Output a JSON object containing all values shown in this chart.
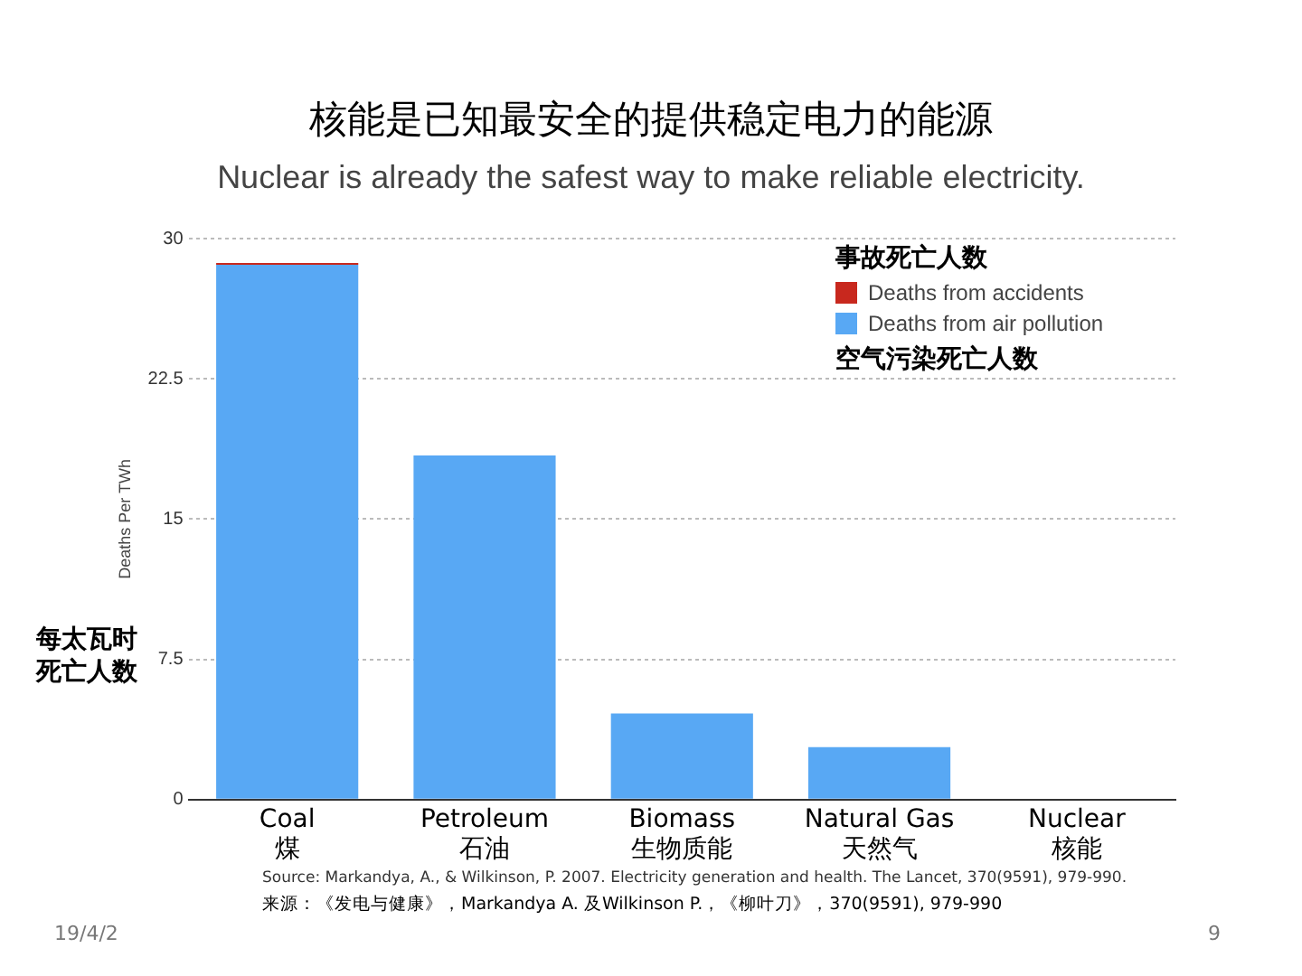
{
  "chart_data": {
    "type": "bar",
    "title": "核能是已知最安全的提供稳定电力的能源",
    "subtitle": "Nuclear is already the safest way to make reliable electricity.",
    "ylabel": "Deaths Per TWh",
    "categories": [
      "Coal\n煤",
      "Petroleum\n石油",
      "Biomass\n生物质能",
      "Natural Gas\n天然气",
      "Nuclear\n核能"
    ],
    "series": [
      {
        "name": "Deaths from air pollution",
        "color": "#58a8f4",
        "values": [
          28.6,
          18.4,
          4.6,
          2.8,
          0
        ]
      },
      {
        "name": "Deaths from accidents",
        "color": "#c8281e",
        "values": [
          0.1,
          0,
          0,
          0,
          0
        ]
      }
    ],
    "stacked": true,
    "ylim": [
      0,
      30
    ],
    "yticks": [
      0,
      7.5,
      15,
      22.5,
      30
    ],
    "grid": "y",
    "legend": "top right",
    "annotations": [
      "事故死亡人数",
      "空气污染死亡人数",
      "每太瓦时死亡人数",
      "Source: Markandya, A., & Wilkinson, P. 2007. Electricity generation and health. The Lancet, 370(9591), 979-990.",
      "来源：《发电与健康》，Markandya A. 及Wilkinson P.，《柳叶刀》，370(9591), 979-990",
      "19/4/2",
      "9"
    ]
  }
}
